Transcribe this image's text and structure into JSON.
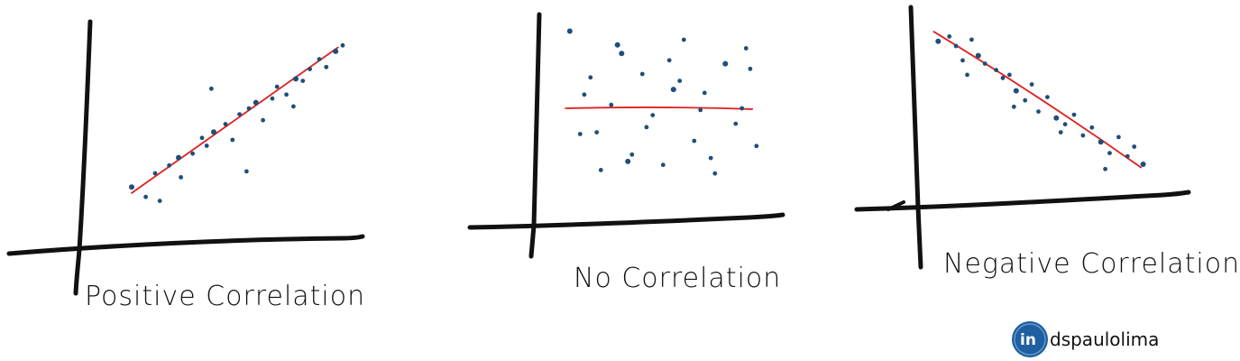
{
  "colors": {
    "axis": "#111111",
    "points": "#1f4e79",
    "trend": "#e02020",
    "logo_circle": "#1f5fa0"
  },
  "chart_data": [
    {
      "type": "scatter",
      "title": "Positive Correlation",
      "x": [
        1.0,
        1.6,
        2.0,
        2.2,
        2.6,
        3.0,
        3.1,
        3.6,
        4.0,
        4.2,
        4.5,
        5.0,
        5.3,
        5.6,
        6.0,
        6.3,
        6.6,
        7.0,
        7.2,
        7.6,
        8.0,
        8.3,
        8.6,
        9.0,
        9.3,
        9.7,
        10.0,
        4.4,
        5.9,
        7.9
      ],
      "y": [
        1.5,
        1.0,
        2.2,
        0.8,
        2.6,
        3.0,
        2.0,
        3.2,
        4.0,
        3.6,
        4.3,
        4.7,
        3.9,
        5.2,
        5.5,
        5.8,
        4.9,
        6.0,
        6.6,
        6.2,
        7.0,
        6.9,
        7.5,
        8.0,
        7.6,
        8.4,
        8.7,
        6.5,
        2.3,
        5.6
      ],
      "trend": {
        "x": [
          1.0,
          9.8
        ],
        "y": [
          1.2,
          8.6
        ]
      }
    },
    {
      "type": "scatter",
      "title": "No Correlation",
      "x": [
        0.6,
        1.1,
        1.6,
        2.1,
        2.6,
        3.1,
        3.6,
        4.1,
        4.6,
        5.1,
        5.6,
        6.1,
        6.6,
        7.1,
        7.6,
        8.1,
        8.6,
        9.1,
        9.6,
        1.3,
        2.9,
        4.3,
        5.9,
        7.4,
        8.9,
        3.4,
        6.9,
        9.3,
        1.9,
        5.4
      ],
      "y": [
        9.5,
        3.5,
        6.8,
        1.4,
        5.2,
        8.2,
        2.3,
        7.0,
        4.6,
        1.7,
        6.1,
        9.0,
        3.1,
        5.9,
        1.2,
        7.6,
        4.1,
        8.5,
        2.8,
        5.8,
        8.7,
        3.9,
        6.6,
        2.1,
        5.0,
        1.9,
        4.9,
        7.3,
        3.6,
        7.8
      ],
      "trend": {
        "x": [
          0.4,
          9.4
        ],
        "y": [
          5.0,
          4.95
        ]
      }
    },
    {
      "type": "scatter",
      "title": "Negative Correlation",
      "x": [
        0.5,
        1.0,
        1.3,
        1.6,
        2.0,
        2.3,
        2.6,
        3.1,
        3.4,
        3.7,
        4.0,
        4.4,
        4.7,
        5.0,
        5.4,
        5.8,
        6.2,
        6.6,
        7.0,
        7.4,
        7.8,
        8.2,
        8.6,
        9.0,
        9.3,
        9.7,
        1.8,
        3.9,
        6.0,
        8.0
      ],
      "y": [
        9.0,
        9.3,
        8.7,
        7.8,
        9.1,
        8.1,
        7.6,
        7.2,
        6.7,
        6.9,
        5.9,
        5.3,
        6.3,
        4.6,
        5.5,
        4.2,
        3.8,
        4.4,
        3.1,
        3.6,
        2.7,
        2.0,
        3.0,
        1.8,
        2.4,
        1.3,
        6.9,
        4.9,
        3.3,
        1.0
      ],
      "trend": {
        "x": [
          0.3,
          9.6
        ],
        "y": [
          9.6,
          1.1
        ]
      }
    }
  ],
  "signature": {
    "logo_label": "in",
    "handle": "dspaulolima"
  }
}
